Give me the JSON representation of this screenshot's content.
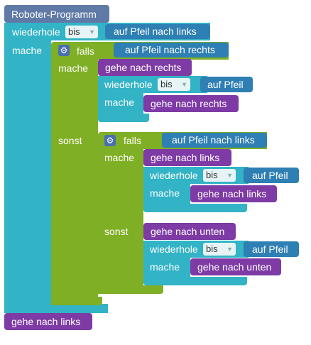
{
  "program": {
    "title": "Roboter-Programm",
    "repeat": {
      "keyword": "wiederhole",
      "mode": "bis",
      "condition": "auf Pfeil nach links",
      "do_label": "mache"
    },
    "if_outer": {
      "keyword": "falls",
      "condition": "auf Pfeil nach rechts",
      "do_label": "mache",
      "else_label": "sonst"
    },
    "then_branch": {
      "action": "gehe nach rechts",
      "repeat": {
        "keyword": "wiederhole",
        "mode": "bis",
        "condition": "auf Pfeil",
        "do_label": "mache",
        "action": "gehe nach rechts"
      }
    },
    "if_inner": {
      "keyword": "falls",
      "condition": "auf Pfeil nach links",
      "do_label": "mache",
      "else_label": "sonst",
      "then_action": "gehe nach links",
      "then_repeat": {
        "keyword": "wiederhole",
        "mode": "bis",
        "condition": "auf Pfeil",
        "do_label": "mache",
        "action": "gehe nach links"
      },
      "else_action": "gehe nach unten",
      "else_repeat": {
        "keyword": "wiederhole",
        "mode": "bis",
        "condition": "auf Pfeil",
        "do_label": "mache",
        "action": "gehe nach unten"
      }
    },
    "final_action": "gehe nach links"
  },
  "colors": {
    "hat": "#5f7aa6",
    "loop": "#32b3c6",
    "logic": "#7faf24",
    "action": "#7e3ba5",
    "sensor": "#2e7fb3"
  }
}
